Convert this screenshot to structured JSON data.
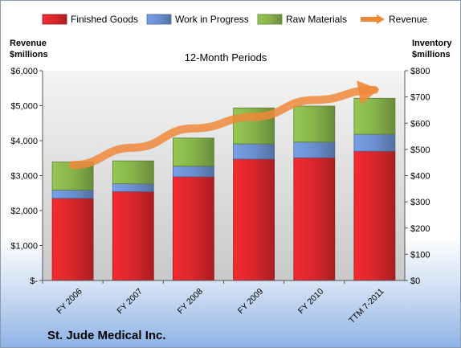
{
  "chart_data": {
    "type": "bar",
    "stacked": true,
    "subtitle": "12-Month Periods",
    "company": "St. Jude Medical Inc.",
    "categories": [
      "FY 2006",
      "FY 2007",
      "FY 2008",
      "FY 2009",
      "FY 2010",
      "TTM 7-2011"
    ],
    "left_axis": {
      "label_line1": "Revenue",
      "label_line2": "$millions",
      "range": [
        0,
        6000
      ],
      "ticks": [
        0,
        1000,
        2000,
        3000,
        4000,
        5000,
        6000
      ],
      "tick_labels": [
        "$-",
        "$1,000",
        "$2,000",
        "$3,000",
        "$4,000",
        "$5,000",
        "$6,000"
      ]
    },
    "right_axis": {
      "label_line1": "Inventory",
      "label_line2": "$millions",
      "range": [
        0,
        800
      ],
      "ticks": [
        0,
        100,
        200,
        300,
        400,
        500,
        600,
        700,
        800
      ],
      "tick_labels": [
        "$0",
        "$100",
        "$200",
        "$300",
        "$400",
        "$500",
        "$600",
        "$700",
        "$800"
      ]
    },
    "grid": false,
    "legend_position": "top",
    "series": [
      {
        "name": "Finished Goods",
        "axis": "right",
        "color": "#d9262c",
        "values": [
          313,
          339,
          396,
          463,
          468,
          493
        ]
      },
      {
        "name": "Work in Progress",
        "axis": "right",
        "color": "#6b8fcf",
        "values": [
          32,
          30,
          40,
          58,
          60,
          65
        ]
      },
      {
        "name": "Raw Materials",
        "axis": "right",
        "color": "#86b34a",
        "values": [
          107,
          87,
          107,
          137,
          137,
          137
        ]
      },
      {
        "name": "Revenue",
        "axis": "left",
        "type": "line",
        "color": "#f0883a",
        "values": [
          3300,
          3800,
          4350,
          4680,
          5160,
          5450
        ]
      }
    ]
  }
}
